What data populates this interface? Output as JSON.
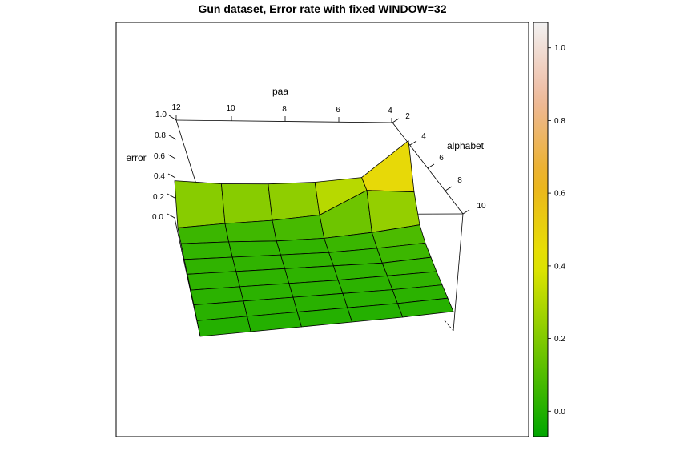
{
  "chart_data": {
    "type": "surface",
    "title": "Gun dataset, Error rate with fixed WINDOW=32",
    "xlabel": "paa",
    "ylabel": "alphabet",
    "zlabel": "error",
    "x_ticks": [
      "12",
      "10",
      "8",
      "6",
      "4"
    ],
    "y_ticks": [
      "2",
      "4",
      "6",
      "8",
      "10"
    ],
    "z_ticks": [
      "0.0",
      "0.2",
      "0.4",
      "0.6",
      "0.8",
      "1.0"
    ],
    "zlim": [
      0,
      1
    ],
    "colorkey": {
      "range": [
        -0.07,
        1.07
      ],
      "ticks": [
        0.0,
        0.2,
        0.4,
        0.6,
        0.8,
        1.0
      ],
      "tick_labels": [
        "0.0",
        "0.2",
        "0.4",
        "0.6",
        "0.8",
        "1.0"
      ]
    },
    "surface_rows": [
      [
        0.38,
        0.34,
        0.33,
        0.34,
        0.38,
        0.75
      ],
      [
        0.05,
        0.08,
        0.1,
        0.14,
        0.38,
        0.35
      ],
      [
        0.04,
        0.04,
        0.03,
        0.04,
        0.08,
        0.14
      ],
      [
        0.03,
        0.03,
        0.03,
        0.03,
        0.05,
        0.08
      ],
      [
        0.03,
        0.03,
        0.03,
        0.03,
        0.03,
        0.06
      ],
      [
        0.02,
        0.02,
        0.02,
        0.02,
        0.03,
        0.04
      ],
      [
        0.02,
        0.02,
        0.02,
        0.02,
        0.02,
        0.03
      ],
      [
        0.01,
        0.01,
        0.01,
        0.01,
        0.01,
        0.02
      ],
      [
        0.0,
        0.0,
        0.0,
        0.0,
        0.0,
        0.01
      ]
    ]
  }
}
